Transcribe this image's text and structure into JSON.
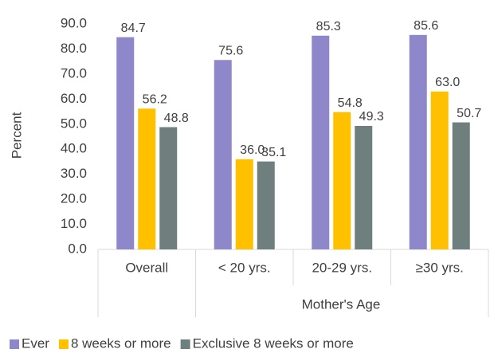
{
  "chart_data": {
    "type": "bar",
    "y_label": "Percent",
    "categories": [
      "Overall",
      "< 20 yrs.",
      "20-29 yrs.",
      "≥30 yrs."
    ],
    "group_label": "Mother's Age",
    "series": [
      {
        "name": "Ever",
        "color": "#8e88ca",
        "values": [
          84.7,
          75.6,
          85.3,
          85.6
        ],
        "value_labels": [
          "84.7",
          "75.6",
          "85.3",
          "85.6"
        ]
      },
      {
        "name": "8 weeks or more",
        "color": "#ffc000",
        "values": [
          56.2,
          36.0,
          54.8,
          63.0
        ],
        "value_labels": [
          "56.2",
          "36.0",
          "54.8",
          "63.0"
        ]
      },
      {
        "name": "Exclusive 8 weeks or more",
        "color": "#6e7f7e",
        "values": [
          48.8,
          35.1,
          49.3,
          50.7
        ],
        "value_labels": [
          "48.8",
          "35.1",
          "49.3",
          "50.7"
        ]
      }
    ],
    "ylim": [
      0,
      90
    ],
    "yticks": [
      {
        "value": 0,
        "label": "0.0"
      },
      {
        "value": 10,
        "label": "10.0"
      },
      {
        "value": 20,
        "label": "20.0"
      },
      {
        "value": 30,
        "label": "30.0"
      },
      {
        "value": 40,
        "label": "40.0"
      },
      {
        "value": 50,
        "label": "50.0"
      },
      {
        "value": 60,
        "label": "60.0"
      },
      {
        "value": 70,
        "label": "70.0"
      },
      {
        "value": 80,
        "label": "80.0"
      },
      {
        "value": 90,
        "label": "90.0"
      }
    ],
    "grid": false,
    "legend": "bottom"
  }
}
